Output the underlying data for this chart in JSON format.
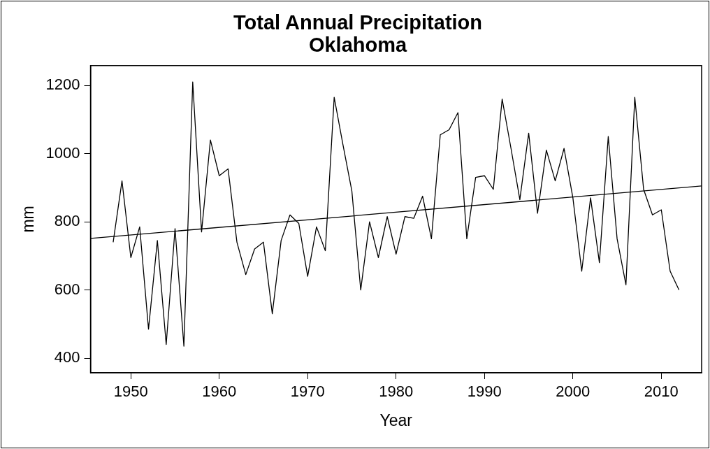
{
  "chart_data": {
    "type": "line",
    "title": "Total Annual Precipitation\nOklahoma",
    "xlabel": "Year",
    "ylabel": "mm",
    "x": [
      1948,
      1949,
      1950,
      1951,
      1952,
      1953,
      1954,
      1955,
      1956,
      1957,
      1958,
      1959,
      1960,
      1961,
      1962,
      1963,
      1964,
      1965,
      1966,
      1967,
      1968,
      1969,
      1970,
      1971,
      1972,
      1973,
      1974,
      1975,
      1976,
      1977,
      1978,
      1979,
      1980,
      1981,
      1982,
      1983,
      1984,
      1985,
      1986,
      1987,
      1988,
      1989,
      1990,
      1991,
      1992,
      1993,
      1994,
      1995,
      1996,
      1997,
      1998,
      1999,
      2000,
      2001,
      2002,
      2003,
      2004,
      2005,
      2006,
      2007,
      2008,
      2009,
      2010,
      2011,
      2012
    ],
    "series": [
      {
        "color": "#000000",
        "values": [
          740,
          920,
          695,
          785,
          485,
          745,
          440,
          780,
          435,
          1210,
          770,
          1040,
          935,
          955,
          740,
          645,
          720,
          740,
          530,
          745,
          820,
          795,
          640,
          785,
          715,
          1165,
          1025,
          890,
          600,
          800,
          695,
          815,
          705,
          815,
          810,
          875,
          750,
          1055,
          1070,
          1120,
          750,
          930,
          935,
          895,
          1160,
          1015,
          865,
          1060,
          825,
          1010,
          920,
          1015,
          870,
          655,
          870,
          680,
          1050,
          750,
          615,
          1165,
          895,
          820,
          835,
          655,
          600
        ]
      },
      {
        "type": "line",
        "color": "#000000",
        "x": [
          1945.44,
          2014.56
        ],
        "values": [
          751,
          905
        ]
      }
    ],
    "xlim": [
      1945.44,
      2014.56
    ],
    "xticks": [
      1950,
      1960,
      1970,
      1980,
      1990,
      2000,
      2010
    ],
    "ylim": [
      357,
      1258
    ],
    "yticks": [
      400,
      600,
      800,
      1000,
      1200
    ],
    "grid": false,
    "legend": false,
    "marker": "none",
    "line_style": "solid"
  }
}
